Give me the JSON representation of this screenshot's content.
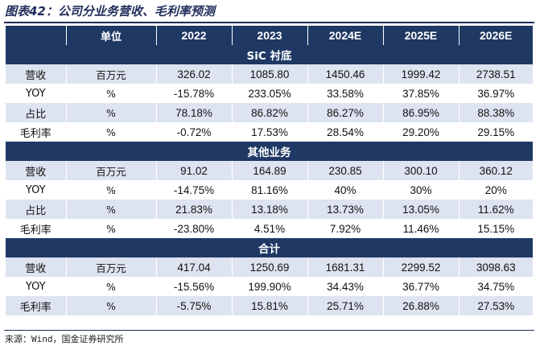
{
  "title": "图表42：公司分业务营收、毛利率预测",
  "header": {
    "label": "",
    "unit": "单位",
    "years": [
      "2022",
      "2023",
      "2024E",
      "2025E",
      "2026E"
    ]
  },
  "sections": [
    {
      "name": "SiC 衬底",
      "rows": [
        {
          "label": "营收",
          "unit": "百万元",
          "values": [
            "326.02",
            "1085.80",
            "1450.46",
            "1999.42",
            "2738.51"
          ]
        },
        {
          "label": "YOY",
          "unit": "%",
          "values": [
            "-15.78%",
            "233.05%",
            "33.58%",
            "37.85%",
            "36.97%"
          ]
        },
        {
          "label": "占比",
          "unit": "%",
          "values": [
            "78.18%",
            "86.82%",
            "86.27%",
            "86.95%",
            "88.38%"
          ]
        },
        {
          "label": "毛利率",
          "unit": "%",
          "values": [
            "-0.72%",
            "17.53%",
            "28.54%",
            "29.20%",
            "29.15%"
          ]
        }
      ]
    },
    {
      "name": "其他业务",
      "rows": [
        {
          "label": "营收",
          "unit": "百万元",
          "values": [
            "91.02",
            "164.89",
            "230.85",
            "300.10",
            "360.12"
          ]
        },
        {
          "label": "YOY",
          "unit": "%",
          "values": [
            "-14.75%",
            "81.16%",
            "40%",
            "30%",
            "20%"
          ]
        },
        {
          "label": "占比",
          "unit": "%",
          "values": [
            "21.83%",
            "13.18%",
            "13.73%",
            "13.05%",
            "11.62%"
          ]
        },
        {
          "label": "毛利率",
          "unit": "%",
          "values": [
            "-23.80%",
            "4.51%",
            "7.92%",
            "11.46%",
            "15.15%"
          ]
        }
      ]
    },
    {
      "name": "合计",
      "rows": [
        {
          "label": "营收",
          "unit": "百万元",
          "values": [
            "417.04",
            "1250.69",
            "1681.31",
            "2299.52",
            "3098.63"
          ]
        },
        {
          "label": "YOY",
          "unit": "%",
          "values": [
            "-15.56%",
            "199.90%",
            "34.43%",
            "36.77%",
            "34.75%"
          ]
        },
        {
          "label": "毛利率",
          "unit": "%",
          "values": [
            "-5.75%",
            "15.81%",
            "25.71%",
            "26.88%",
            "27.53%"
          ]
        }
      ]
    }
  ],
  "source": "来源：Wind，国金证券研究所",
  "colors": {
    "header_bg": "#1f3864",
    "stripe": "#dde3f0",
    "title": "#1f2d5a"
  }
}
